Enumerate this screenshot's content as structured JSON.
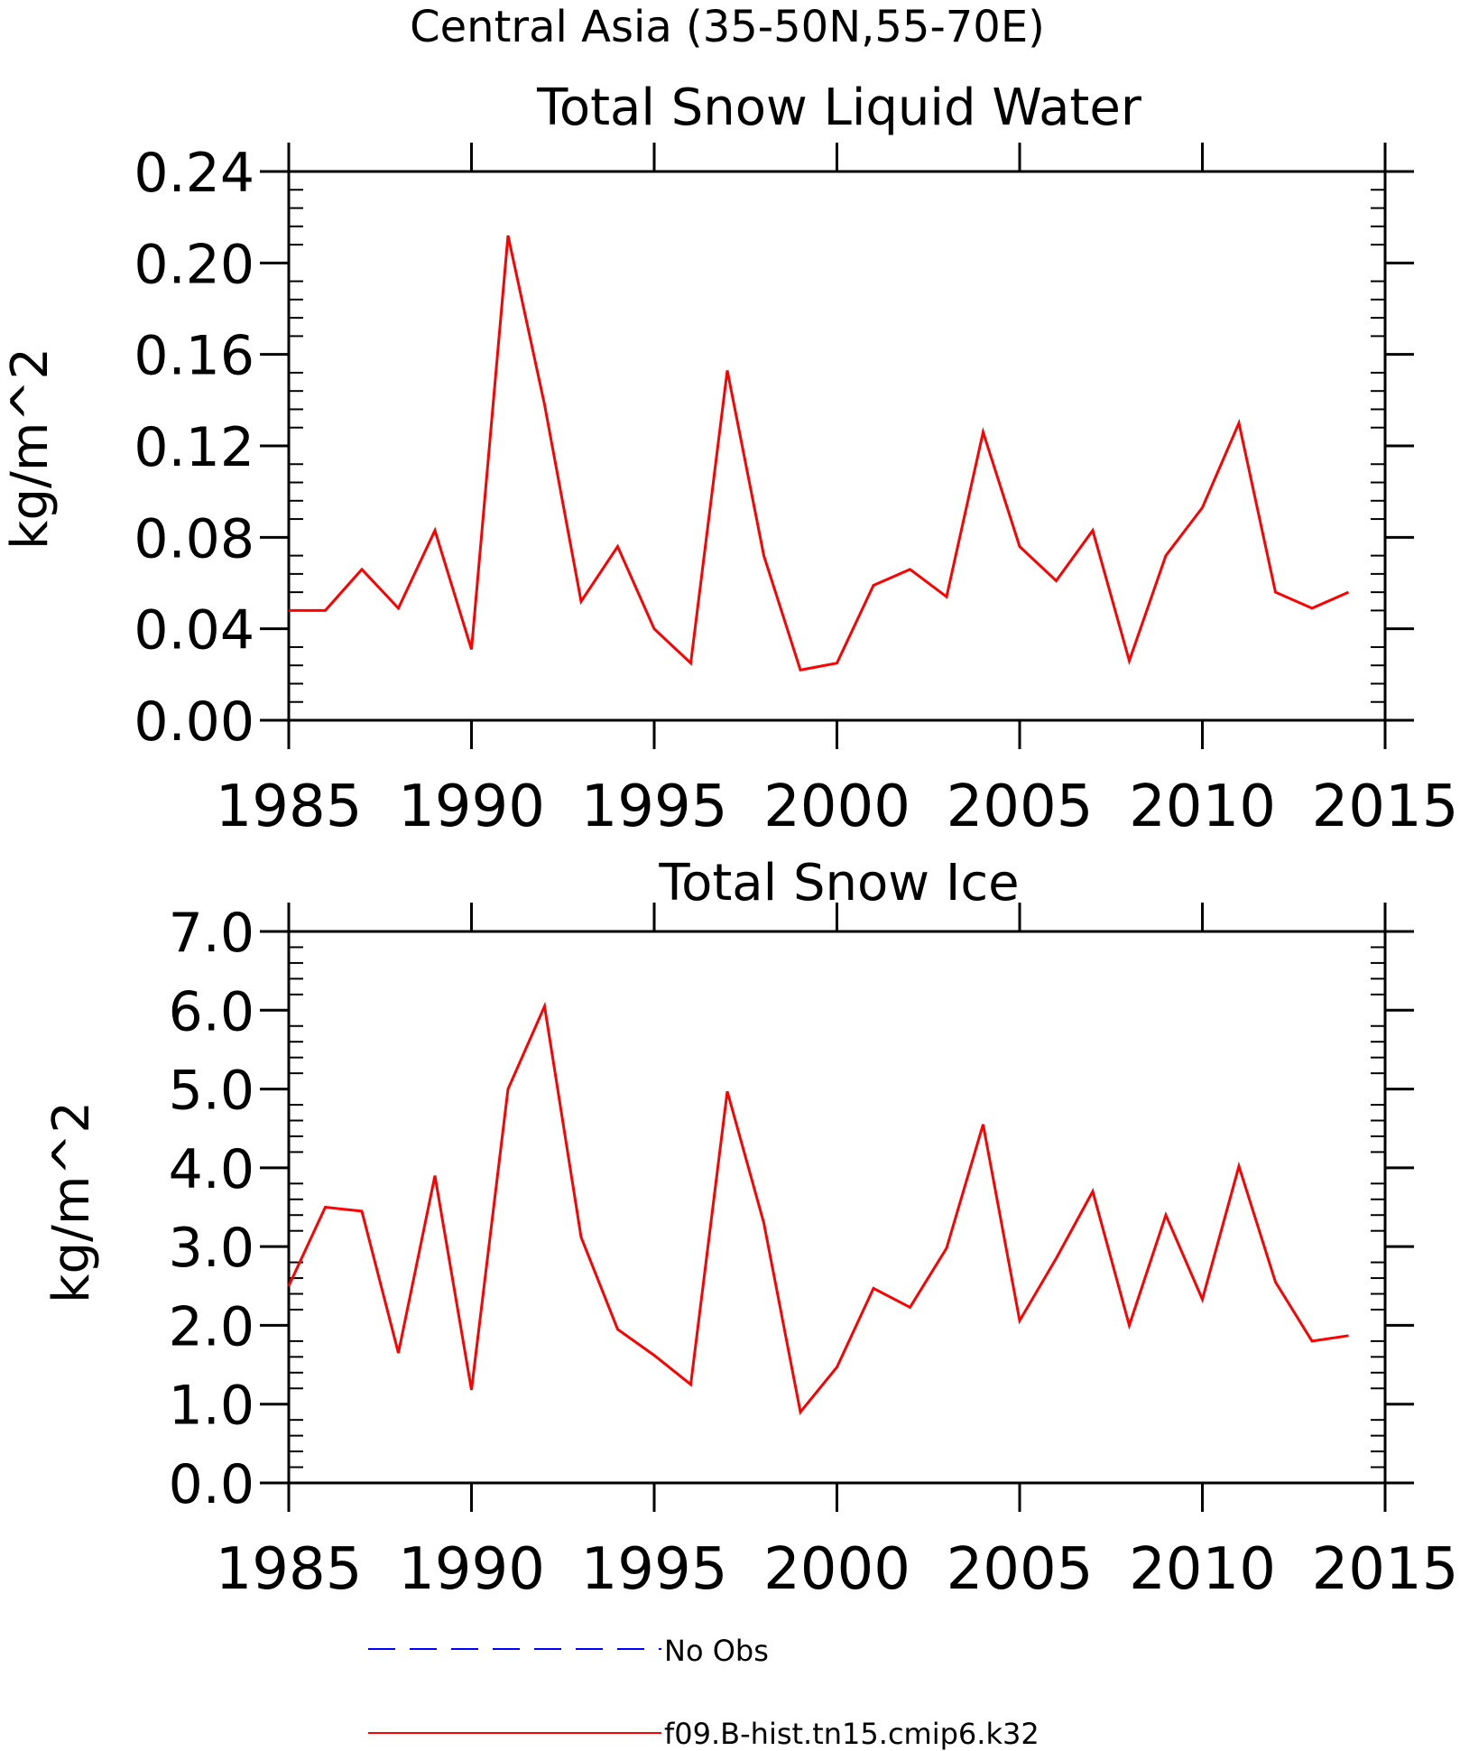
{
  "figure": {
    "main_title": "Central Asia (35-50N,55-70E)"
  },
  "chart_data": [
    {
      "type": "line",
      "title": "Total Snow Liquid Water",
      "xlabel": "",
      "ylabel": "kg/m^2",
      "xlim": [
        1985,
        2015
      ],
      "ylim": [
        0,
        0.24
      ],
      "xticks": [
        1985,
        1990,
        1995,
        2000,
        2005,
        2010,
        2015
      ],
      "yticks": [
        "0.00",
        "0.04",
        "0.08",
        "0.12",
        "0.16",
        "0.20",
        "0.24"
      ],
      "grid": false,
      "series": [
        {
          "name": "f09.B-hist.tn15.cmip6.k32",
          "color": "#ff0000",
          "x": [
            1985,
            1986,
            1987,
            1988,
            1989,
            1990,
            1991,
            1992,
            1993,
            1994,
            1995,
            1996,
            1997,
            1998,
            1999,
            2000,
            2001,
            2002,
            2003,
            2004,
            2005,
            2006,
            2007,
            2008,
            2009,
            2010,
            2011,
            2012,
            2013,
            2014
          ],
          "y": [
            0.048,
            0.048,
            0.066,
            0.049,
            0.083,
            0.031,
            0.212,
            0.138,
            0.052,
            0.076,
            0.04,
            0.025,
            0.153,
            0.072,
            0.022,
            0.025,
            0.059,
            0.066,
            0.054,
            0.126,
            0.076,
            0.061,
            0.083,
            0.026,
            0.072,
            0.093,
            0.13,
            0.056,
            0.049,
            0.056
          ]
        }
      ]
    },
    {
      "type": "line",
      "title": "Total Snow Ice",
      "xlabel": "",
      "ylabel": "kg/m^2",
      "xlim": [
        1985,
        2015
      ],
      "ylim": [
        0,
        7
      ],
      "xticks": [
        1985,
        1990,
        1995,
        2000,
        2005,
        2010,
        2015
      ],
      "yticks": [
        "0.0",
        "1.0",
        "2.0",
        "3.0",
        "4.0",
        "5.0",
        "6.0",
        "7.0"
      ],
      "grid": false,
      "series": [
        {
          "name": "f09.B-hist.tn15.cmip6.k32",
          "color": "#ff0000",
          "x": [
            1985,
            1986,
            1987,
            1988,
            1989,
            1990,
            1991,
            1992,
            1993,
            1994,
            1995,
            1996,
            1997,
            1998,
            1999,
            2000,
            2001,
            2002,
            2003,
            2004,
            2005,
            2006,
            2007,
            2008,
            2009,
            2010,
            2011,
            2012,
            2013,
            2014
          ],
          "y": [
            2.5,
            3.5,
            3.45,
            1.65,
            3.9,
            1.18,
            5.0,
            6.05,
            3.12,
            1.95,
            1.62,
            1.25,
            4.97,
            3.3,
            0.9,
            1.47,
            2.47,
            2.23,
            2.98,
            4.55,
            2.06,
            2.85,
            3.7,
            2.0,
            3.4,
            2.33,
            4.02,
            2.55,
            1.8,
            1.87
          ]
        }
      ]
    }
  ],
  "legend": {
    "placement": "bottom-center",
    "items": [
      {
        "label": "No Obs",
        "color": "#0000ff",
        "style": "dashed"
      },
      {
        "label": "f09.B-hist.tn15.cmip6.k32",
        "color": "#ff0000",
        "style": "solid"
      }
    ]
  }
}
